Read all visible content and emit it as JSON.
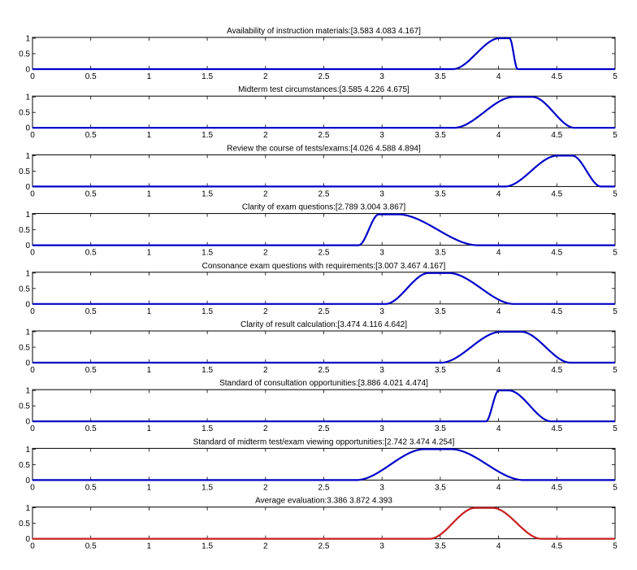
{
  "chart_data": [
    {
      "type": "line",
      "title": "Availability of instruction materials:[3.583 4.083 4.167]",
      "params": [
        3.583,
        4.083,
        4.167
      ],
      "color": "#0000c8",
      "xlim": [
        0,
        5
      ],
      "ylim": [
        0,
        1
      ],
      "xticks": [
        0,
        0.5,
        1,
        1.5,
        2,
        2.5,
        3,
        3.5,
        4,
        4.5,
        5
      ],
      "yticks": [
        0,
        0.5,
        1
      ]
    },
    {
      "type": "line",
      "title": "Midterm test circumstances:[3.585 4.226 4.675]",
      "params": [
        3.585,
        4.226,
        4.675
      ],
      "color": "#0000c8",
      "xlim": [
        0,
        5
      ],
      "ylim": [
        0,
        1
      ],
      "xticks": [
        0,
        0.5,
        1,
        1.5,
        2,
        2.5,
        3,
        3.5,
        4,
        4.5,
        5
      ],
      "yticks": [
        0,
        0.5,
        1
      ]
    },
    {
      "type": "line",
      "title": "Review the course of tests/exams:[4.026 4.588 4.894]",
      "params": [
        4.026,
        4.588,
        4.894
      ],
      "color": "#0000c8",
      "xlim": [
        0,
        5
      ],
      "ylim": [
        0,
        1
      ],
      "xticks": [
        0,
        0.5,
        1,
        1.5,
        2,
        2.5,
        3,
        3.5,
        4,
        4.5,
        5
      ],
      "yticks": [
        0,
        0.5,
        1
      ]
    },
    {
      "type": "line",
      "title": "Clarity of exam questions:[2.789 3.004 3.867]",
      "params": [
        2.789,
        3.004,
        3.867
      ],
      "color": "#0000c8",
      "xlim": [
        0,
        5
      ],
      "ylim": [
        0,
        1
      ],
      "xticks": [
        0,
        0.5,
        1,
        1.5,
        2,
        2.5,
        3,
        3.5,
        4,
        4.5,
        5
      ],
      "yticks": [
        0,
        0.5,
        1
      ]
    },
    {
      "type": "line",
      "title": "Consonance exam questions with requirements:[3.007 3.467 4.167]",
      "params": [
        3.007,
        3.467,
        4.167
      ],
      "color": "#0000c8",
      "xlim": [
        0,
        5
      ],
      "ylim": [
        0,
        1
      ],
      "xticks": [
        0,
        0.5,
        1,
        1.5,
        2,
        2.5,
        3,
        3.5,
        4,
        4.5,
        5
      ],
      "yticks": [
        0,
        0.5,
        1
      ]
    },
    {
      "type": "line",
      "title": "Clarity of result calculation:[3.474 4.116 4.642]",
      "params": [
        3.474,
        4.116,
        4.642
      ],
      "color": "#0000c8",
      "xlim": [
        0,
        5
      ],
      "ylim": [
        0,
        1
      ],
      "xticks": [
        0,
        0.5,
        1,
        1.5,
        2,
        2.5,
        3,
        3.5,
        4,
        4.5,
        5
      ],
      "yticks": [
        0,
        0.5,
        1
      ]
    },
    {
      "type": "line",
      "title": "Standard of consultation opportunities:[3.886 4.021 4.474]",
      "params": [
        3.886,
        4.021,
        4.474
      ],
      "color": "#0000c8",
      "xlim": [
        0,
        5
      ],
      "ylim": [
        0,
        1
      ],
      "xticks": [
        0,
        0.5,
        1,
        1.5,
        2,
        2.5,
        3,
        3.5,
        4,
        4.5,
        5
      ],
      "yticks": [
        0,
        0.5,
        1
      ]
    },
    {
      "type": "line",
      "title": "Standard of midterm test/exam viewing opportunities:[2.742 3.474 4.254]",
      "params": [
        2.742,
        3.474,
        4.254
      ],
      "color": "#0000c8",
      "xlim": [
        0,
        5
      ],
      "ylim": [
        0,
        1
      ],
      "xticks": [
        0,
        0.5,
        1,
        1.5,
        2,
        2.5,
        3,
        3.5,
        4,
        4.5,
        5
      ],
      "yticks": [
        0,
        0.5,
        1
      ]
    },
    {
      "type": "line",
      "title": "Average evaluation:3.386 3.872 4.393",
      "params": [
        3.386,
        3.872,
        4.393
      ],
      "color": "#c81e1e",
      "xlim": [
        0,
        5
      ],
      "ylim": [
        0,
        1
      ],
      "xticks": [
        0,
        0.5,
        1,
        1.5,
        2,
        2.5,
        3,
        3.5,
        4,
        4.5,
        5
      ],
      "yticks": [
        0,
        0.5,
        1
      ]
    }
  ]
}
